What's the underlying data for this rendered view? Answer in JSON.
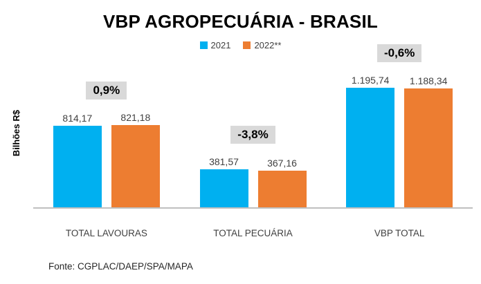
{
  "source_note": "Fonte: CGPLAC/DAEP/SPA/MAPA",
  "chart_data": {
    "type": "bar",
    "title": "VBP AGROPECUÁRIA - BRASIL",
    "ylabel": "Bilhões R$",
    "xlabel": "",
    "categories": [
      "TOTAL LAVOURAS",
      "TOTAL PECUÁRIA",
      "VBP TOTAL"
    ],
    "series": [
      {
        "name": "2021",
        "color": "#00B0F0",
        "values": [
          814.17,
          381.57,
          1195.74
        ],
        "labels": [
          "814,17",
          "381,57",
          "1.195,74"
        ]
      },
      {
        "name": "2022**",
        "color": "#ED7D31",
        "values": [
          821.18,
          367.16,
          1188.34
        ],
        "labels": [
          "821,18",
          "367,16",
          "1.188,34"
        ]
      }
    ],
    "change_labels": [
      "0,9%",
      "-3,8%",
      "-0,6%"
    ],
    "change_label_background": "#D9D9D9",
    "ylim": [
      0,
      1300
    ],
    "grid": false,
    "legend_position": "top",
    "axis_line_color": "#BFBFBF"
  }
}
